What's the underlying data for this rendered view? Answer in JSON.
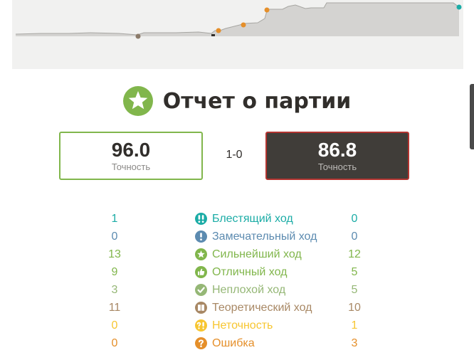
{
  "report": {
    "title": "Отчет о партии",
    "result": "1-0",
    "white_accuracy": "96.0",
    "black_accuracy": "86.8",
    "accuracy_label": "Точность"
  },
  "classifications": [
    {
      "label": "Блестящий ход",
      "white": "1",
      "black": "0",
      "color": "#1baca6",
      "icon": "double-exclamation-icon"
    },
    {
      "label": "Замечательный ход",
      "white": "0",
      "black": "0",
      "color": "#5c8bb0",
      "icon": "exclamation-icon"
    },
    {
      "label": "Сильнейший ход",
      "white": "13",
      "black": "12",
      "color": "#81b64c",
      "icon": "star-icon"
    },
    {
      "label": "Отличный ход",
      "white": "9",
      "black": "5",
      "color": "#81b64c",
      "icon": "thumbs-up-icon"
    },
    {
      "label": "Неплохой ход",
      "white": "3",
      "black": "5",
      "color": "#95b776",
      "icon": "checkmark-icon"
    },
    {
      "label": "Теоретический ход",
      "white": "11",
      "black": "10",
      "color": "#a88865",
      "icon": "book-icon"
    },
    {
      "label": "Неточность",
      "white": "0",
      "black": "1",
      "color": "#f7c631",
      "icon": "question-exclamation-icon"
    },
    {
      "label": "Ошибка",
      "white": "0",
      "black": "3",
      "color": "#e58f2a",
      "icon": "question-icon"
    }
  ],
  "graph": {
    "background": "#f1f1f0",
    "advantage_color": "#d4d3d1",
    "markers": [
      {
        "type": "mistake",
        "color": "#e58f2a"
      },
      {
        "type": "mistake",
        "color": "#e58f2a"
      },
      {
        "type": "mistake",
        "color": "#e58f2a"
      },
      {
        "type": "inaccuracy",
        "color": "#e58f2a"
      },
      {
        "type": "brilliant",
        "color": "#1baca6"
      }
    ]
  }
}
